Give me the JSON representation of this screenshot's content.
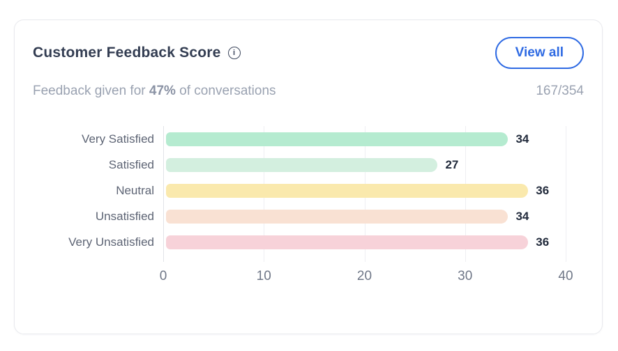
{
  "card": {
    "title": "Customer Feedback Score",
    "view_all_label": "View all",
    "subtitle_prefix": "Feedback given for ",
    "subtitle_percent": "47%",
    "subtitle_suffix": " of conversations",
    "ratio": "167/354",
    "info_icon_glyph": "i"
  },
  "colors": {
    "accent_blue": "#2e6ae3",
    "title_text": "#333d52",
    "muted_text": "#9aa2b1",
    "label_text": "#5d6474",
    "value_text": "#222b3c",
    "card_border": "#e8e9ed"
  },
  "chart_data": {
    "type": "bar",
    "orientation": "horizontal",
    "title": "Customer Feedback Score",
    "categories": [
      "Very Satisfied",
      "Satisfied",
      "Neutral",
      "Unsatisfied",
      "Very Unsatisfied"
    ],
    "values": [
      34,
      27,
      36,
      34,
      36
    ],
    "bar_colors": [
      "#b5ebd0",
      "#d3efdf",
      "#fae9ad",
      "#f9e1d3",
      "#f7d2d9"
    ],
    "xlim": [
      0,
      40
    ],
    "xticks": [
      0,
      10,
      20,
      30,
      40
    ],
    "grid": true,
    "legend": false,
    "value_labels": true
  }
}
